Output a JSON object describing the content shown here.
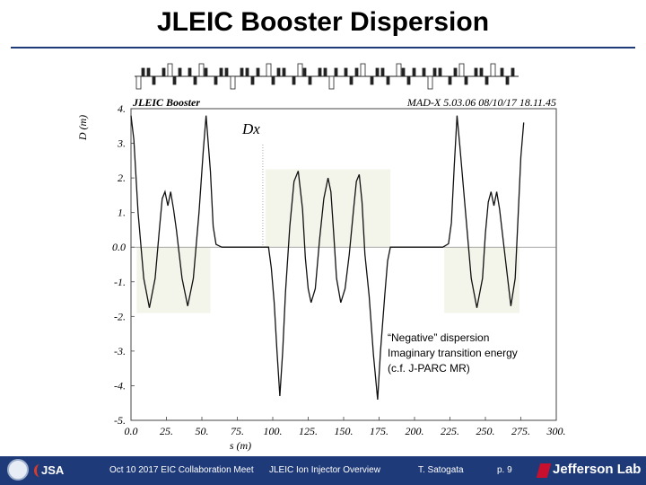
{
  "slide": {
    "title": "JLEIC Booster Dispersion"
  },
  "annotation": {
    "lines": [
      "“Negative” dispersion",
      "Imaginary transition energy",
      "(c.f. J-PARC MR)"
    ]
  },
  "footer": {
    "date_event": "Oct 10 2017 EIC Collaboration Meet",
    "talk": "JLEIC Ion Injector Overview",
    "author": "T. Satogata",
    "page": "p. 9",
    "lab": "Jefferson Lab",
    "jsa": "JSA",
    "colors": {
      "bar": "#1f3a78",
      "accent": "#c8102e"
    }
  },
  "chart_data": {
    "type": "line",
    "plot_label": "JLEIC Booster",
    "code_label": "MAD-X 5.03.06  08/10/17 18.11.45",
    "series_label": "Dx",
    "xlabel": "s (m)",
    "ylabel": "D (m)",
    "xlim": [
      0,
      300
    ],
    "ylim": [
      -5,
      4
    ],
    "xticks": [
      0,
      25,
      50,
      75,
      100,
      125,
      150,
      175,
      200,
      225,
      250,
      275,
      300
    ],
    "xtick_labels": [
      "0.0",
      "25.",
      "50.",
      "75.",
      "100.",
      "125.",
      "150.",
      "175.",
      "200.",
      "225.",
      "250.",
      "275.",
      "300."
    ],
    "yticks": [
      4,
      3,
      2,
      1,
      0,
      -1,
      -2,
      -3,
      -4,
      -5
    ],
    "ytick_labels": [
      "4.",
      "3.",
      "2.",
      "1.",
      "0.0",
      "-1.",
      "-2.",
      "-3.",
      "-4.",
      "-5."
    ],
    "shaded_regions": [
      {
        "s": [
          4,
          56
        ],
        "D": [
          -1.9,
          0
        ]
      },
      {
        "s": [
          95,
          183
        ],
        "D": [
          0,
          2.25
        ]
      },
      {
        "s": [
          221,
          274
        ],
        "D": [
          -1.9,
          0
        ]
      }
    ],
    "series": [
      {
        "x": [
          0,
          2,
          5,
          9,
          13,
          17,
          20,
          22,
          24,
          26,
          28,
          30,
          32,
          36,
          40,
          44,
          48,
          51,
          53,
          56,
          58,
          60,
          64,
          70,
          80,
          90,
          97,
          99,
          101,
          103,
          105,
          107,
          109,
          112,
          115,
          118,
          121,
          123,
          125,
          127,
          130,
          133,
          136,
          139,
          141,
          143,
          145,
          148,
          151,
          154,
          157,
          159,
          161,
          163,
          165,
          168,
          171,
          174,
          176,
          179,
          181,
          183,
          185,
          190,
          200,
          210,
          220,
          224,
          226,
          228,
          230,
          232,
          236,
          240,
          244,
          248,
          250,
          252,
          254,
          256,
          258,
          260,
          264,
          268,
          271,
          273,
          275,
          277
        ],
        "y": [
          3.8,
          3.1,
          1.0,
          -0.9,
          -1.75,
          -0.9,
          0.5,
          1.4,
          1.6,
          1.2,
          1.6,
          1.1,
          0.5,
          -0.9,
          -1.7,
          -0.9,
          1.0,
          2.8,
          3.8,
          2.2,
          0.6,
          0.08,
          0.0,
          0.0,
          0.0,
          0.0,
          0.0,
          -0.6,
          -1.6,
          -3.0,
          -4.3,
          -3.0,
          -1.3,
          0.6,
          1.9,
          2.2,
          1.1,
          -0.3,
          -1.2,
          -1.6,
          -1.2,
          0.2,
          1.4,
          2.0,
          1.6,
          0.4,
          -0.9,
          -1.6,
          -1.2,
          -0.2,
          1.1,
          1.9,
          2.1,
          1.3,
          -0.2,
          -1.4,
          -3.1,
          -4.4,
          -3.0,
          -1.4,
          -0.4,
          0.0,
          0.0,
          0.0,
          0.0,
          0.0,
          0.0,
          0.1,
          0.7,
          2.3,
          3.8,
          2.9,
          1.0,
          -0.9,
          -1.75,
          -0.9,
          0.4,
          1.3,
          1.6,
          1.2,
          1.6,
          1.1,
          -0.3,
          -1.7,
          -0.9,
          0.8,
          2.6,
          3.6
        ]
      }
    ]
  }
}
